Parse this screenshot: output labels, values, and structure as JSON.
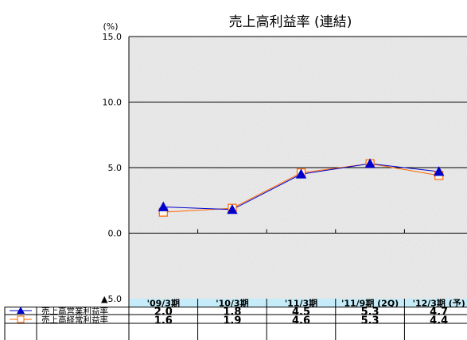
{
  "chart_data": {
    "type": "line",
    "title": "売上高利益率 (連結)",
    "ylabel": "(%)",
    "ylim": [
      -5.0,
      15.0
    ],
    "yticks": [
      {
        "value": 15.0,
        "label": "15.0"
      },
      {
        "value": 10.0,
        "label": "10.0"
      },
      {
        "value": 5.0,
        "label": "5.0"
      },
      {
        "value": 0.0,
        "label": "0.0"
      },
      {
        "value": -5.0,
        "label": "▲5.0"
      }
    ],
    "categories": [
      "'09/3期",
      "'10/3期",
      "'11/3期",
      "'11/9期 (2Q)",
      "'12/3期 (予)"
    ],
    "grid": "horizontal",
    "legend": "bottom-table",
    "series": [
      {
        "name": "売上高営業利益率",
        "values": [
          2.0,
          1.8,
          4.5,
          5.3,
          4.7
        ],
        "labels": [
          "2.0",
          "1.8",
          "4.5",
          "5.3",
          "4.7"
        ],
        "color": "#0000cc",
        "marker": "filled-triangle"
      },
      {
        "name": "売上高経常利益率",
        "values": [
          1.6,
          1.9,
          4.6,
          5.3,
          4.4
        ],
        "labels": [
          "1.6",
          "1.9",
          "4.6",
          "5.3",
          "4.4"
        ],
        "color": "#ff6600",
        "marker": "open-square"
      }
    ],
    "colors": {
      "plot_background": "#ececec",
      "table_header": "#c5ecf8"
    }
  }
}
